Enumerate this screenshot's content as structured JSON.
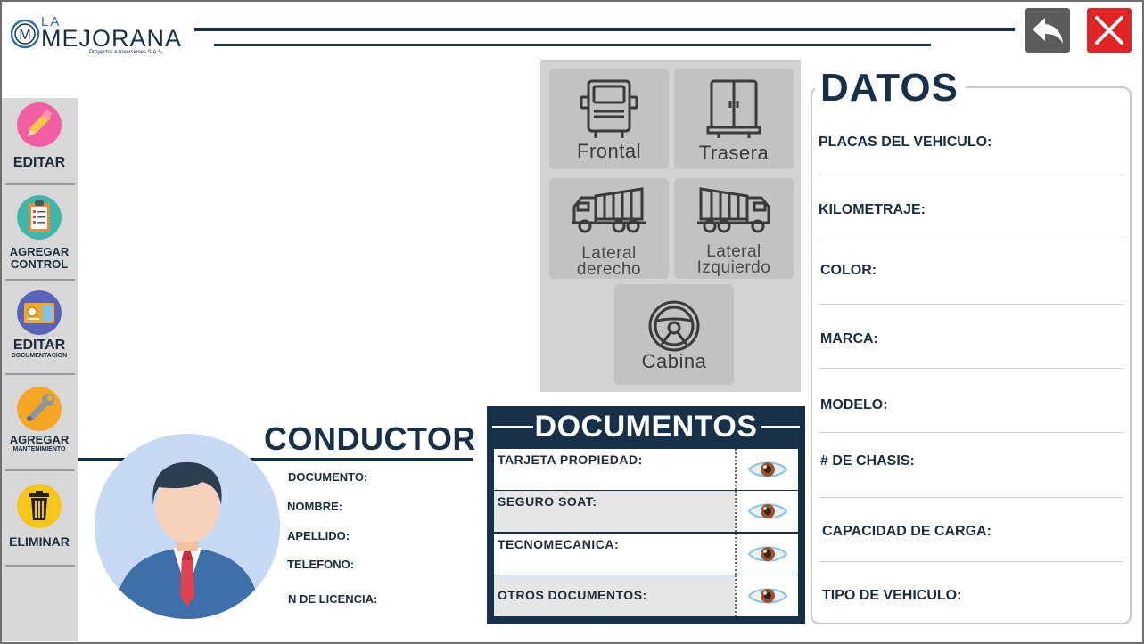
{
  "header": {
    "logo_top": "LA",
    "logo_main": "MEJORANA",
    "logo_sub": "Proyectos e Inversiones S.A.S."
  },
  "sidebar": {
    "items": [
      {
        "label": "EDITAR",
        "icon": "pencil-icon"
      },
      {
        "label": "AGREGAR",
        "label2": "CONTROL",
        "icon": "checklist-icon"
      },
      {
        "label": "EDITAR",
        "sub": "DOCUMENTACION",
        "icon": "id-card-icon"
      },
      {
        "label": "AGREGAR",
        "sub": "MANTENIMIENTO",
        "icon": "wrench-icon"
      },
      {
        "label": "ELIMINAR",
        "icon": "trash-icon"
      }
    ]
  },
  "photos": {
    "frontal": "Frontal",
    "trasera": "Trasera",
    "lateral_der_1": "Lateral",
    "lateral_der_2": "derecho",
    "lateral_izq_1": "Lateral",
    "lateral_izq_2": "Izquierdo",
    "cabina": "Cabina"
  },
  "datos": {
    "title": "DATOS",
    "fields": [
      "PLACAS DEL VEHICULO:",
      "KILOMETRAJE:",
      "COLOR:",
      "MARCA:",
      "MODELO:",
      "# DE CHASIS:",
      "CAPACIDAD DE CARGA:",
      "TIPO DE VEHICULO:"
    ]
  },
  "conductor": {
    "title": "CONDUCTOR",
    "fields": [
      "DOCUMENTO:",
      "NOMBRE:",
      "APELLIDO:",
      "TELEFONO:",
      "N DE LICENCIA:"
    ]
  },
  "documentos": {
    "title": "DOCUMENTOS",
    "rows": [
      "TARJETA PROPIEDAD:",
      "SEGURO SOAT:",
      "TECNOMECANICA:",
      "OTROS DOCUMENTOS:"
    ]
  },
  "colors": {
    "navy": "#17304a",
    "close_red": "#e02424",
    "back_gray": "#5b5b5b",
    "sidebar_gray": "#d8d8d8"
  }
}
